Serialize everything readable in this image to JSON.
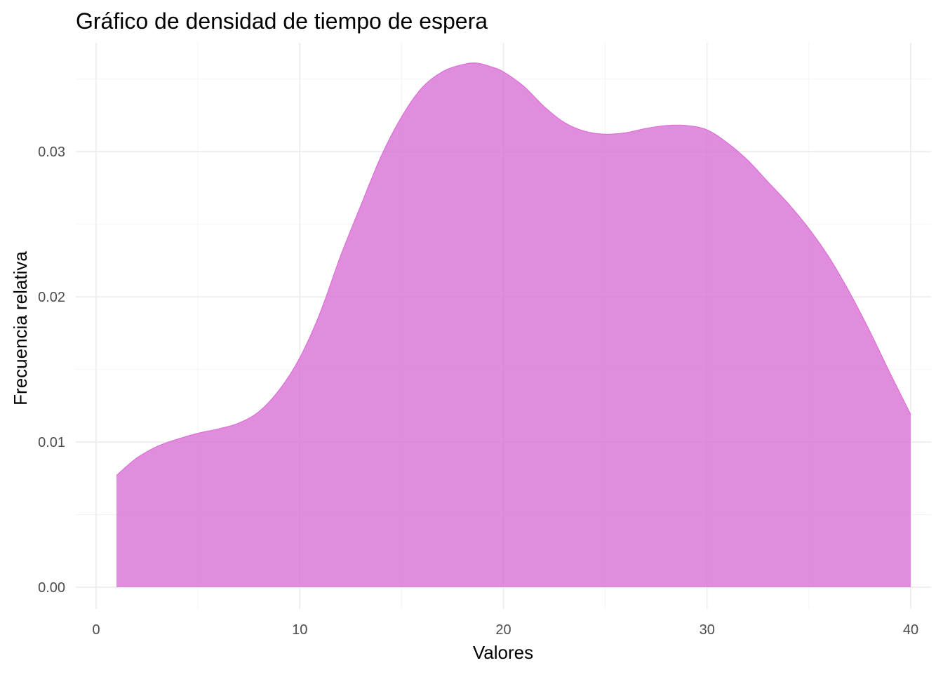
{
  "chart_data": {
    "type": "area",
    "title": "Gráfico de densidad de tiempo de espera",
    "xlabel": "Valores",
    "ylabel": "Frecuencia relativa",
    "xlim": [
      -1,
      41
    ],
    "ylim": [
      -0.0015,
      0.0375
    ],
    "x_ticks": [
      0,
      10,
      20,
      30,
      40
    ],
    "x_tick_labels": [
      "0",
      "10",
      "20",
      "30",
      "40"
    ],
    "x_minor_ticks": [
      5,
      15,
      25,
      35
    ],
    "y_ticks": [
      0.0,
      0.01,
      0.02,
      0.03
    ],
    "y_tick_labels": [
      "0.00",
      "0.01",
      "0.02",
      "0.03"
    ],
    "y_minor_ticks": [
      0.005,
      0.015,
      0.025,
      0.035
    ],
    "grid": true,
    "legend": "none",
    "fill_color": "#DA70D6",
    "fill_opacity": 0.8,
    "line_color": "#DA70D6",
    "series": [
      {
        "x": [
          1,
          2,
          3,
          4,
          5,
          6,
          7,
          8,
          9,
          10,
          11,
          12,
          13,
          14,
          15,
          16,
          17,
          18,
          18.7,
          19.5,
          20,
          21,
          22,
          23,
          24,
          25,
          26,
          27,
          28,
          29,
          30,
          31,
          32,
          33,
          34,
          35,
          36,
          37,
          38,
          39,
          40
        ],
        "y": [
          0.0077,
          0.0089,
          0.0097,
          0.0102,
          0.0106,
          0.0109,
          0.0113,
          0.0121,
          0.0136,
          0.0158,
          0.0189,
          0.0228,
          0.0263,
          0.0297,
          0.0324,
          0.0344,
          0.0355,
          0.036,
          0.0361,
          0.0358,
          0.0355,
          0.0345,
          0.0331,
          0.032,
          0.0314,
          0.0312,
          0.0313,
          0.0316,
          0.0318,
          0.0318,
          0.0315,
          0.0306,
          0.0294,
          0.0279,
          0.0264,
          0.0247,
          0.0227,
          0.0203,
          0.0176,
          0.0147,
          0.0119
        ]
      }
    ]
  }
}
